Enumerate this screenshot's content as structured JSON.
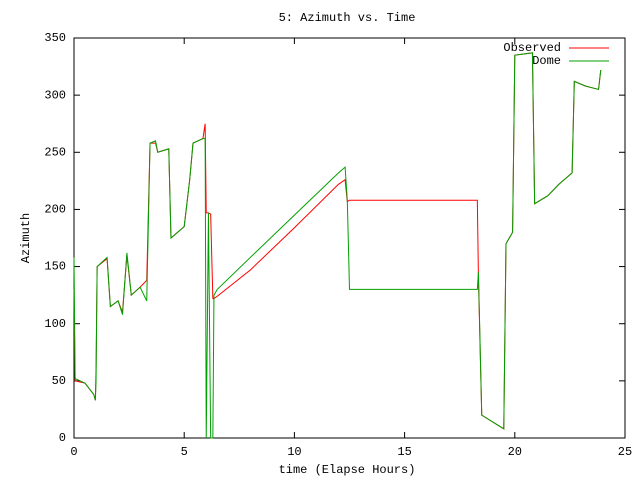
{
  "chart_data": {
    "type": "line",
    "title": "5: Azimuth vs. Time",
    "x_label": "time (Elapse Hours)",
    "y_label": "Azimuth",
    "x": [
      0,
      0.05,
      0.5,
      0.9,
      0.97,
      1.0,
      1.05,
      1.5,
      1.65,
      2.0,
      2.2,
      2.4,
      2.6,
      3.0,
      3.3,
      3.45,
      3.7,
      3.8,
      4.3,
      4.4,
      5.0,
      5.25,
      5.4,
      5.85,
      5.95,
      6.0,
      6.1,
      6.2,
      6.3,
      6.35,
      6.5,
      8.0,
      10.0,
      12.0,
      12.3,
      12.4,
      12.5,
      18.3,
      18.35,
      18.5,
      19.5,
      19.6,
      19.9,
      20.0,
      20.8,
      20.9,
      21.5,
      22.0,
      22.6,
      22.7,
      23.2,
      23.8,
      23.9
    ],
    "series": [
      {
        "name": "Observed",
        "color": "#ff0000",
        "values": [
          130,
          50,
          48,
          38,
          33,
          60,
          150,
          157,
          115,
          120,
          110,
          160,
          125,
          132,
          138,
          258,
          258,
          250,
          253,
          175,
          185,
          226,
          258,
          262,
          275,
          197,
          197,
          196,
          122,
          122,
          124,
          147,
          184,
          222,
          226,
          207,
          208,
          208,
          140,
          20,
          8,
          170,
          180,
          335,
          337,
          205,
          212,
          222,
          232,
          312,
          308,
          305,
          322
        ]
      },
      {
        "name": "Dome",
        "color": "#00a000",
        "values": [
          158,
          52,
          48,
          38,
          33,
          50,
          150,
          158,
          115,
          120,
          108,
          162,
          125,
          132,
          120,
          258,
          260,
          250,
          253,
          175,
          185,
          226,
          258,
          262,
          262,
          0,
          197,
          0,
          0,
          125,
          130,
          158,
          195,
          232,
          237,
          208,
          130,
          130,
          145,
          20,
          8,
          170,
          180,
          335,
          337,
          205,
          212,
          222,
          232,
          312,
          308,
          305,
          322
        ]
      }
    ],
    "xlim": [
      0,
      25
    ],
    "xticks": [
      0,
      5,
      10,
      15,
      20,
      25
    ],
    "ylim": [
      0,
      350
    ],
    "yticks": [
      0,
      50,
      100,
      150,
      200,
      250,
      300,
      350
    ],
    "legend": "top-right"
  }
}
